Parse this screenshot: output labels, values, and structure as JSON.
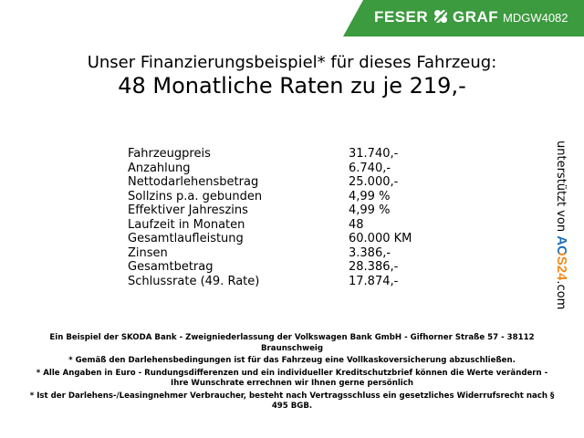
{
  "header": {
    "brand_left": "FESER",
    "brand_right": "GRAF",
    "code": "MDGW4082"
  },
  "title": {
    "line1": "Unser Finanzierungsbeispiel* für dieses Fahrzeug:",
    "line2": "48 Monatliche Raten zu je 219,-"
  },
  "table": {
    "rows": [
      [
        "Fahrzeugpreis",
        "31.740,-"
      ],
      [
        "Anzahlung",
        "6.740,-"
      ],
      [
        "Nettodarlehensbetrag",
        "25.000,-"
      ],
      [
        "Sollzins p.a. gebunden",
        "4,99 %"
      ],
      [
        "Effektiver Jahreszins",
        "4,99 %"
      ],
      [
        "Laufzeit in Monaten",
        "48"
      ],
      [
        "Gesamtlaufleistung",
        "60.000 KM"
      ],
      [
        "Zinsen",
        "3.386,-"
      ],
      [
        "Gesamtbetrag",
        "28.386,-"
      ],
      [
        "Schlussrate (49. Rate)",
        "17.874,-"
      ]
    ]
  },
  "side_badge": {
    "prefix": "unterstützt von",
    "brand": "AOS24",
    "suffix": ".com"
  },
  "notes": [
    "Ein Beispiel der SKODA Bank - Zweigniederlassung der Volkswagen Bank GmbH - Gifhorner Straße 57 - 38112 Braunschweig",
    "* Gemäß den Darlehensbedingungen ist für das Fahrzeug eine Vollkaskoversicherung abzuschließen.",
    "* Alle Angaben in Euro - Rundungsdifferenzen und ein individueller Kreditschutzbrief können die Werte verändern - Ihre Wunschrate errechnen wir Ihnen gerne persönlich",
    "* Ist der Darlehens-/Leasingnehmer Verbraucher, besteht nach Vertragsschluss ein gesetzliches Widerrufsrecht nach § 495 BGB."
  ]
}
